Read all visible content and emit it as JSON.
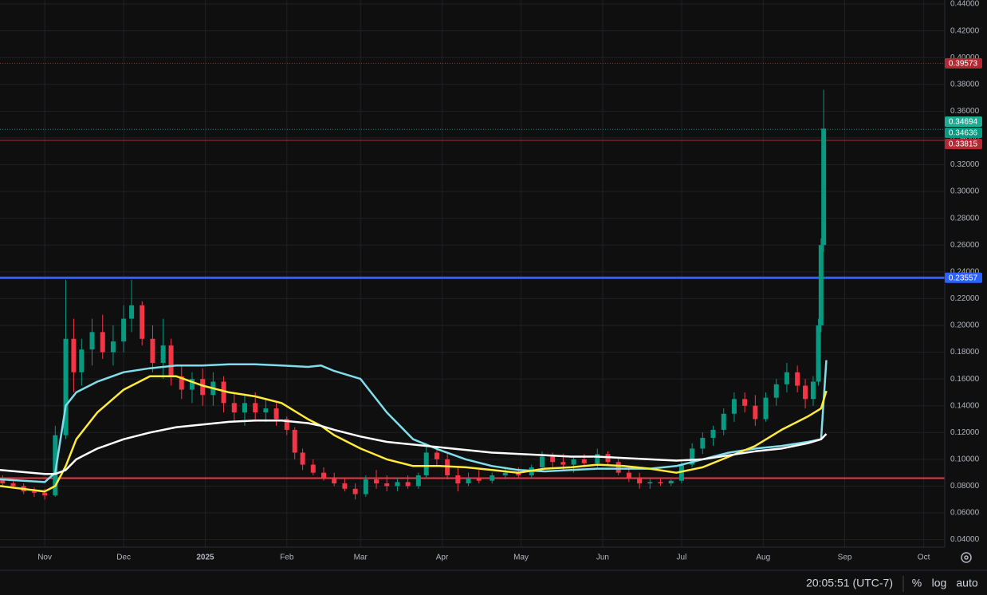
{
  "chart_data": {
    "type": "candlestick",
    "up_color": "#089981",
    "down_color": "#f23645",
    "x": [
      -16,
      -12,
      -8,
      -4,
      0,
      4,
      8,
      11,
      14,
      18,
      22,
      26,
      30,
      33,
      37,
      41,
      45,
      48,
      52,
      56,
      60,
      64,
      68,
      72,
      76,
      80,
      84,
      88,
      92,
      95,
      98,
      102,
      106,
      110,
      114,
      118,
      122,
      126,
      130,
      134,
      138,
      142,
      145,
      149,
      153,
      157,
      161,
      165,
      170,
      175,
      180,
      185,
      189,
      193,
      197,
      201,
      205,
      210,
      214,
      218,
      222,
      226,
      230,
      234,
      238,
      242,
      246,
      250,
      254,
      258,
      262,
      266,
      270,
      274,
      278,
      282,
      286,
      289,
      292,
      294,
      295,
      296
    ],
    "open": [
      0.085,
      0.082,
      0.08,
      0.076,
      0.075,
      0.073,
      0.118,
      0.19,
      0.165,
      0.182,
      0.195,
      0.18,
      0.188,
      0.205,
      0.215,
      0.19,
      0.172,
      0.185,
      0.162,
      0.152,
      0.16,
      0.148,
      0.158,
      0.142,
      0.135,
      0.142,
      0.135,
      0.138,
      0.13,
      0.122,
      0.105,
      0.096,
      0.09,
      0.086,
      0.082,
      0.078,
      0.074,
      0.085,
      0.082,
      0.08,
      0.083,
      0.08,
      0.088,
      0.105,
      0.1,
      0.088,
      0.082,
      0.086,
      0.084,
      0.088,
      0.09,
      0.088,
      0.094,
      0.102,
      0.098,
      0.096,
      0.1,
      0.097,
      0.104,
      0.098,
      0.09,
      0.086,
      0.082,
      0.083,
      0.082,
      0.084,
      0.096,
      0.108,
      0.116,
      0.122,
      0.134,
      0.145,
      0.14,
      0.13,
      0.146,
      0.156,
      0.165,
      0.155,
      0.145,
      0.158,
      0.2,
      0.26
    ],
    "high": [
      0.088,
      0.084,
      0.082,
      0.079,
      0.078,
      0.125,
      0.234,
      0.205,
      0.19,
      0.205,
      0.208,
      0.2,
      0.215,
      0.234,
      0.218,
      0.2,
      0.205,
      0.19,
      0.17,
      0.165,
      0.168,
      0.165,
      0.162,
      0.15,
      0.148,
      0.15,
      0.145,
      0.142,
      0.132,
      0.124,
      0.108,
      0.1,
      0.094,
      0.09,
      0.086,
      0.082,
      0.088,
      0.092,
      0.088,
      0.086,
      0.088,
      0.09,
      0.112,
      0.11,
      0.104,
      0.095,
      0.09,
      0.092,
      0.09,
      0.094,
      0.094,
      0.096,
      0.106,
      0.105,
      0.104,
      0.102,
      0.104,
      0.108,
      0.106,
      0.102,
      0.094,
      0.09,
      0.086,
      0.086,
      0.085,
      0.098,
      0.112,
      0.12,
      0.125,
      0.138,
      0.15,
      0.15,
      0.148,
      0.15,
      0.16,
      0.172,
      0.17,
      0.16,
      0.162,
      0.205,
      0.265,
      0.376
    ],
    "low": [
      0.08,
      0.078,
      0.074,
      0.072,
      0.07,
      0.072,
      0.115,
      0.15,
      0.155,
      0.17,
      0.175,
      0.17,
      0.18,
      0.195,
      0.185,
      0.165,
      0.16,
      0.155,
      0.145,
      0.142,
      0.14,
      0.14,
      0.135,
      0.128,
      0.125,
      0.128,
      0.128,
      0.125,
      0.118,
      0.1,
      0.092,
      0.088,
      0.084,
      0.08,
      0.076,
      0.07,
      0.072,
      0.078,
      0.076,
      0.076,
      0.078,
      0.078,
      0.086,
      0.095,
      0.085,
      0.076,
      0.08,
      0.082,
      0.082,
      0.085,
      0.086,
      0.086,
      0.092,
      0.094,
      0.092,
      0.09,
      0.094,
      0.094,
      0.095,
      0.088,
      0.083,
      0.078,
      0.078,
      0.08,
      0.08,
      0.082,
      0.094,
      0.104,
      0.11,
      0.118,
      0.128,
      0.135,
      0.125,
      0.128,
      0.14,
      0.15,
      0.15,
      0.138,
      0.14,
      0.155,
      0.195,
      0.255
    ],
    "close": [
      0.082,
      0.08,
      0.076,
      0.075,
      0.073,
      0.118,
      0.19,
      0.165,
      0.182,
      0.195,
      0.18,
      0.188,
      0.205,
      0.215,
      0.19,
      0.172,
      0.185,
      0.162,
      0.152,
      0.16,
      0.148,
      0.158,
      0.142,
      0.135,
      0.142,
      0.135,
      0.138,
      0.13,
      0.122,
      0.105,
      0.096,
      0.09,
      0.086,
      0.082,
      0.078,
      0.074,
      0.085,
      0.082,
      0.08,
      0.083,
      0.08,
      0.088,
      0.105,
      0.1,
      0.088,
      0.082,
      0.086,
      0.084,
      0.088,
      0.09,
      0.088,
      0.094,
      0.102,
      0.098,
      0.096,
      0.1,
      0.097,
      0.104,
      0.098,
      0.09,
      0.086,
      0.082,
      0.083,
      0.082,
      0.084,
      0.096,
      0.108,
      0.116,
      0.122,
      0.134,
      0.145,
      0.14,
      0.13,
      0.146,
      0.156,
      0.165,
      0.155,
      0.145,
      0.158,
      0.2,
      0.26,
      0.34694
    ],
    "series": [
      {
        "color": "#80deea",
        "x": [
          -17,
          0,
          4,
          8,
          12,
          20,
          30,
          40,
          50,
          60,
          70,
          80,
          90,
          100,
          105,
          110,
          120,
          130,
          140,
          150,
          160,
          170,
          180,
          190,
          200,
          210,
          220,
          230,
          240,
          250,
          260,
          270,
          280,
          290,
          295,
          297
        ],
        "values": [
          0.085,
          0.083,
          0.09,
          0.14,
          0.15,
          0.158,
          0.165,
          0.168,
          0.17,
          0.17,
          0.171,
          0.171,
          0.17,
          0.169,
          0.17,
          0.166,
          0.16,
          0.135,
          0.115,
          0.107,
          0.1,
          0.095,
          0.092,
          0.091,
          0.092,
          0.093,
          0.093,
          0.093,
          0.095,
          0.1,
          0.105,
          0.108,
          0.11,
          0.113,
          0.115,
          0.174
        ]
      },
      {
        "color": "#ffeb3b",
        "x": [
          -17,
          0,
          4,
          8,
          12,
          20,
          30,
          40,
          50,
          60,
          70,
          80,
          90,
          100,
          105,
          110,
          120,
          130,
          140,
          150,
          160,
          170,
          180,
          190,
          200,
          210,
          220,
          230,
          240,
          250,
          260,
          270,
          280,
          290,
          295,
          297
        ],
        "values": [
          0.08,
          0.076,
          0.08,
          0.095,
          0.115,
          0.135,
          0.152,
          0.162,
          0.162,
          0.155,
          0.15,
          0.147,
          0.142,
          0.13,
          0.125,
          0.118,
          0.108,
          0.1,
          0.095,
          0.095,
          0.094,
          0.092,
          0.09,
          0.093,
          0.094,
          0.096,
          0.095,
          0.093,
          0.09,
          0.094,
          0.102,
          0.11,
          0.122,
          0.132,
          0.138,
          0.151
        ]
      },
      {
        "color": "#ffffff",
        "x": [
          -17,
          0,
          4,
          8,
          12,
          20,
          30,
          40,
          50,
          60,
          70,
          80,
          90,
          100,
          105,
          110,
          120,
          130,
          140,
          150,
          160,
          170,
          180,
          190,
          200,
          210,
          220,
          230,
          240,
          250,
          260,
          270,
          280,
          290,
          295,
          297
        ],
        "values": [
          0.092,
          0.089,
          0.089,
          0.092,
          0.1,
          0.108,
          0.115,
          0.12,
          0.124,
          0.126,
          0.128,
          0.129,
          0.129,
          0.127,
          0.125,
          0.122,
          0.117,
          0.113,
          0.111,
          0.109,
          0.107,
          0.105,
          0.104,
          0.103,
          0.102,
          0.102,
          0.101,
          0.1,
          0.099,
          0.1,
          0.103,
          0.106,
          0.108,
          0.112,
          0.115,
          0.119
        ]
      }
    ],
    "levels": [
      {
        "value": 0.39573,
        "color": "#b22833",
        "width": 1,
        "dash": true,
        "labeled": true
      },
      {
        "value": 0.34636,
        "color": "#089981",
        "width": 1,
        "dash": true,
        "labeled": true
      },
      {
        "value": 0.33815,
        "color": "#b22833",
        "width": 1,
        "dash": false,
        "labeled": true
      },
      {
        "value": 0.23557,
        "color": "#2962ff",
        "width": 3,
        "dash": false,
        "labeled": true
      },
      {
        "value": 0.0859,
        "color": "#f23645",
        "width": 2,
        "dash": false,
        "labeled": false
      }
    ],
    "last_color": "#22ab94",
    "xlim": [
      -17,
      342
    ],
    "xticks": [
      {
        "value": 0,
        "label": "Nov"
      },
      {
        "value": 30,
        "label": "Dec"
      },
      {
        "value": 61,
        "label": "2025"
      },
      {
        "value": 92,
        "label": "Feb"
      },
      {
        "value": 120,
        "label": "Mar"
      },
      {
        "value": 151,
        "label": "Apr"
      },
      {
        "value": 181,
        "label": "May"
      },
      {
        "value": 212,
        "label": "Jun"
      },
      {
        "value": 242,
        "label": "Jul"
      },
      {
        "value": 273,
        "label": "Aug"
      },
      {
        "value": 304,
        "label": "Sep"
      },
      {
        "value": 334,
        "label": "Oct"
      }
    ],
    "ylim": [
      0.0344,
      0.443
    ],
    "yticks": [
      {
        "value": 0.04,
        "label": "0.04000"
      },
      {
        "value": 0.06,
        "label": "0.06000"
      },
      {
        "value": 0.08,
        "label": "0.08000"
      },
      {
        "value": 0.1,
        "label": "0.10000"
      },
      {
        "value": 0.12,
        "label": "0.12000"
      },
      {
        "value": 0.14,
        "label": "0.14000"
      },
      {
        "value": 0.16,
        "label": "0.16000"
      },
      {
        "value": 0.18,
        "label": "0.18000"
      },
      {
        "value": 0.2,
        "label": "0.20000"
      },
      {
        "value": 0.22,
        "label": "0.22000"
      },
      {
        "value": 0.24,
        "label": "0.24000"
      },
      {
        "value": 0.26,
        "label": "0.26000"
      },
      {
        "value": 0.28,
        "label": "0.28000"
      },
      {
        "value": 0.3,
        "label": "0.30000"
      },
      {
        "value": 0.32,
        "label": "0.32000"
      },
      {
        "value": 0.34,
        "label": "0.34000"
      },
      {
        "value": 0.36,
        "label": "0.36000"
      },
      {
        "value": 0.38,
        "label": "0.38000"
      },
      {
        "value": 0.4,
        "label": "0.40000"
      },
      {
        "value": 0.42,
        "label": "0.42000"
      },
      {
        "value": 0.44,
        "label": "0.44000"
      }
    ],
    "grid": true
  },
  "status_bar": {
    "time": "20:05:51 (UTC-7)",
    "buttons": [
      "%",
      "log",
      "auto"
    ]
  }
}
